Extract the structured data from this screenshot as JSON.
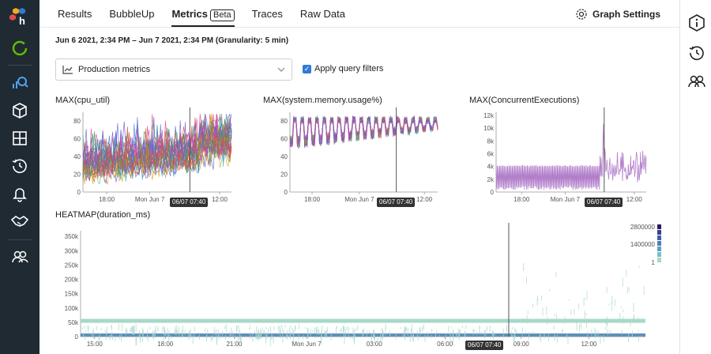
{
  "tabs": [
    {
      "label": "Results"
    },
    {
      "label": "BubbleUp"
    },
    {
      "label": "Metrics",
      "badge": "Beta"
    },
    {
      "label": "Traces"
    },
    {
      "label": "Raw Data"
    }
  ],
  "graph_settings_label": "Graph Settings",
  "time_range": "Jun 6 2021, 2:34 PM – Jun 7 2021, 2:34 PM (Granularity: 5 min)",
  "metrics_select": {
    "value": "Production metrics"
  },
  "apply_query_filters": {
    "label": "Apply query filters",
    "checked": true
  },
  "hover_marker": "06/07 07:40",
  "colors": {
    "nav_bg": "#1f2a33",
    "accent": "#2f7bd6",
    "logo_green": "#64ba00",
    "heat_light": "#a8d8c8",
    "heat_dark": "#5f8fbd",
    "exec_line": "#b27fcb"
  },
  "chart_data": [
    {
      "type": "line",
      "title": "MAX(cpu_util)",
      "x_ticks": [
        "18:00",
        "Mon Jun 7",
        "12:00"
      ],
      "y_ticks": [
        "0",
        "20",
        "40",
        "60",
        "80"
      ],
      "ylim": [
        0,
        90
      ],
      "series_count": "many",
      "grid": false
    },
    {
      "type": "line",
      "title": "MAX(system.memory.usage%)",
      "x_ticks": [
        "18:00",
        "Mon Jun 7",
        "12:00"
      ],
      "y_ticks": [
        "0",
        "20",
        "40",
        "60",
        "80"
      ],
      "ylim": [
        0,
        90
      ],
      "series_count": "many",
      "grid": false
    },
    {
      "type": "line",
      "title": "MAX(ConcurrentExecutions)",
      "x_ticks": [
        "18:00",
        "Mon Jun 7",
        "12:00"
      ],
      "y_ticks": [
        "0",
        "2k",
        "4k",
        "6k",
        "8k",
        "10k",
        "12k"
      ],
      "ylim": [
        0,
        12500
      ],
      "grid": false
    },
    {
      "type": "heatmap",
      "title": "HEATMAP(duration_ms)",
      "x_ticks": [
        "15:00",
        "18:00",
        "21:00",
        "Mon Jun 7",
        "03:00",
        "06:00",
        "09:00",
        "12:00"
      ],
      "y_ticks": [
        "0",
        "50k",
        "100k",
        "150k",
        "200k",
        "250k",
        "300k",
        "350k"
      ],
      "ylim": [
        0,
        370000
      ],
      "legend": [
        "2800000",
        "1400000",
        "1"
      ],
      "legend_position": "top-right"
    }
  ]
}
